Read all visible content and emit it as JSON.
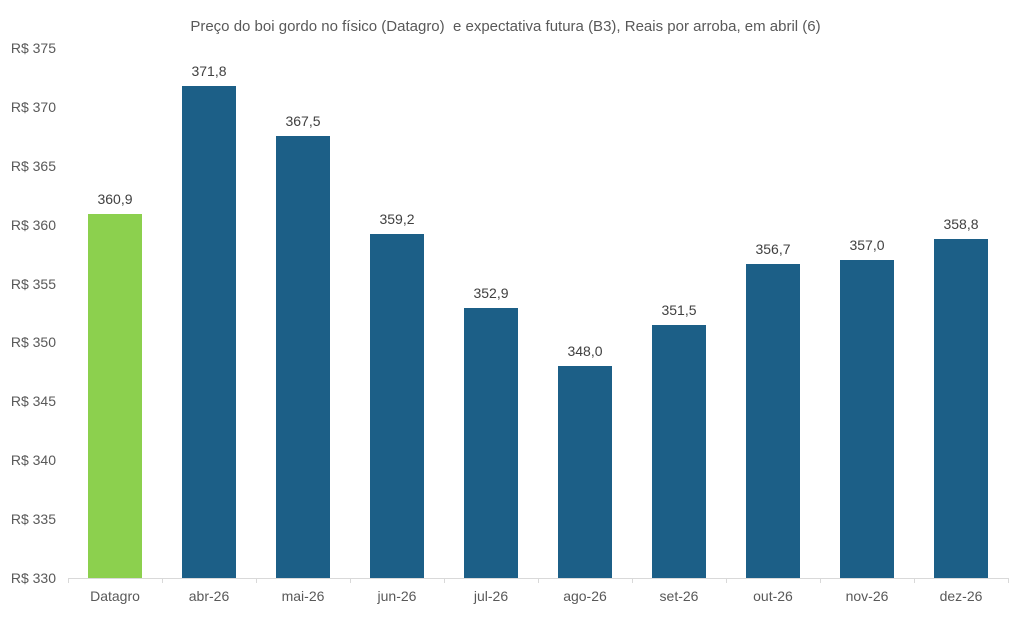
{
  "chart_data": {
    "type": "bar",
    "title": "Preço do boi gordo no físico (Datagro)  e expectativa futura (B3), Reais por arroba, em abril (6)",
    "categories": [
      "Datagro",
      "abr-26",
      "mai-26",
      "jun-26",
      "jul-26",
      "ago-26",
      "set-26",
      "out-26",
      "nov-26",
      "dez-26"
    ],
    "values": [
      360.9,
      371.8,
      367.5,
      359.2,
      352.9,
      348.0,
      351.5,
      356.7,
      357.0,
      358.8
    ],
    "value_labels": [
      "360,9",
      "371,8",
      "367,5",
      "359,2",
      "352,9",
      "348,0",
      "351,5",
      "356,7",
      "357,0",
      "358,8"
    ],
    "xlabel": "",
    "ylabel": "",
    "ylim": [
      330,
      375
    ],
    "ytick_values": [
      330,
      335,
      340,
      345,
      350,
      355,
      360,
      365,
      370,
      375
    ],
    "ytick_labels": [
      "R$ 330",
      "R$ 335",
      "R$ 340",
      "R$ 345",
      "R$ 350",
      "R$ 355",
      "R$ 360",
      "R$ 365",
      "R$ 370",
      "R$ 375"
    ],
    "grid": false,
    "legend_position": "none",
    "colors": {
      "highlight_bar": "#8CD04E",
      "default_bar": "#1C5F87",
      "axis_line": "#d9d9d9",
      "axis_text": "#595959",
      "value_text": "#404040",
      "title_text": "#595959",
      "background": "#ffffff"
    },
    "highlight_category": "Datagro"
  }
}
